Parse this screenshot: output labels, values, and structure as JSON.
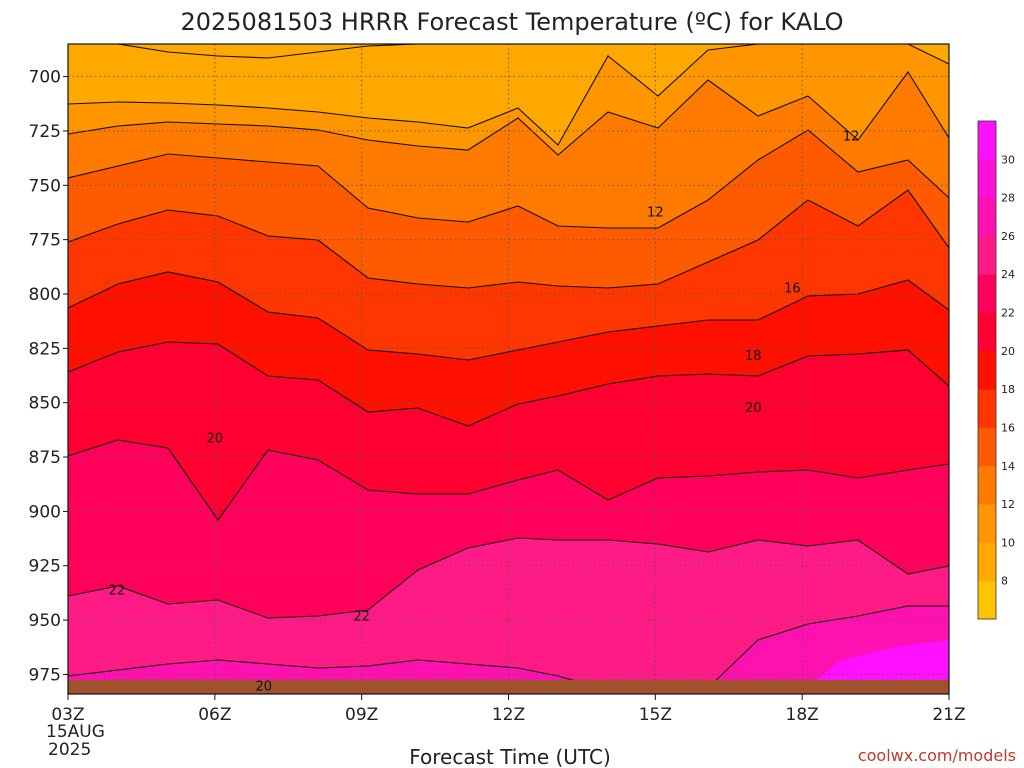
{
  "chart_data": {
    "type": "contour",
    "title": "2025081503 HRRR Forecast Temperature (ºC) for KALO",
    "xlabel": "Forecast Time (UTC)",
    "ylabel": "",
    "x_ticks": [
      "03Z",
      "06Z",
      "09Z",
      "12Z",
      "15Z",
      "18Z",
      "21Z"
    ],
    "x_start_date": "15AUG",
    "x_start_year": "2025",
    "xlim": [
      3,
      21
    ],
    "y_ticks": [
      700,
      725,
      750,
      775,
      800,
      825,
      850,
      875,
      900,
      925,
      950,
      975
    ],
    "ylim": [
      984,
      685
    ],
    "colorbar": {
      "ticks": [
        8,
        10,
        12,
        14,
        16,
        18,
        20,
        22,
        24,
        26,
        28,
        30
      ],
      "colors": [
        "#ffc400",
        "#ffa800",
        "#ff9600",
        "#ff7a00",
        "#ff5a00",
        "#ff3600",
        "#ff1000",
        "#ff0030",
        "#ff005a",
        "#ff1a86",
        "#ff10b0",
        "#ff10d8",
        "#ff10ff"
      ]
    },
    "contour_labels": [
      {
        "text": "12",
        "x": 15.0,
        "y": 762
      },
      {
        "text": "12",
        "x": 19.0,
        "y": 727
      },
      {
        "text": "16",
        "x": 17.8,
        "y": 797
      },
      {
        "text": "18",
        "x": 17.0,
        "y": 828
      },
      {
        "text": "20",
        "x": 17.0,
        "y": 852
      },
      {
        "text": "20",
        "x": 6.0,
        "y": 866
      },
      {
        "text": "22",
        "x": 4.0,
        "y": 936
      },
      {
        "text": "22",
        "x": 9.0,
        "y": 948
      },
      {
        "text": "20",
        "x": 7.0,
        "y": 980
      }
    ],
    "ground_color": "#a0522d",
    "watermark": "coolwx.com/models"
  }
}
